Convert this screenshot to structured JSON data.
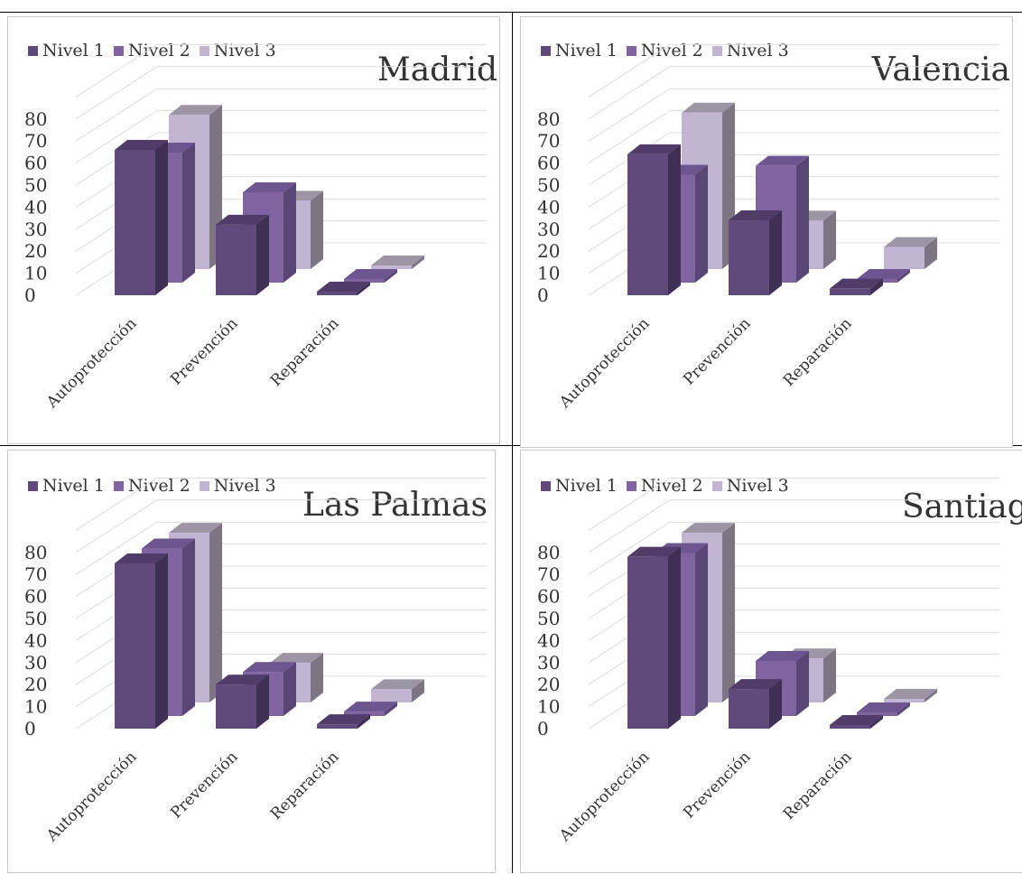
{
  "legend": [
    "Nivel 1",
    "Nivel 2",
    "Nivel 3"
  ],
  "colors": {
    "nivel1": {
      "front": "#604a7b",
      "side": "#3f2f55",
      "top": "#4f3c68"
    },
    "nivel2": {
      "front": "#8064a2",
      "side": "#5a4675",
      "top": "#6d5590"
    },
    "nivel3": {
      "front": "#c1b5d3",
      "side": "#7d7484",
      "top": "#9c95a6"
    }
  },
  "chart_data": [
    {
      "type": "bar",
      "title": "Madrid",
      "categories": [
        "Autoprotección",
        "Prevención",
        "Reparación"
      ],
      "series": [
        {
          "name": "Nivel 1",
          "values": [
            66,
            32,
            0
          ]
        },
        {
          "name": "Nivel 2",
          "values": [
            59,
            41,
            0
          ]
        },
        {
          "name": "Nivel 3",
          "values": [
            70,
            31,
            0
          ]
        }
      ],
      "yticks": [
        "0",
        "10",
        "20",
        "30",
        "40",
        "50",
        "60",
        "70",
        "80"
      ],
      "ylim": [
        0,
        80
      ]
    },
    {
      "type": "bar",
      "title": "Valencia",
      "categories": [
        "Autoprotección",
        "Prevención",
        "Reparación"
      ],
      "series": [
        {
          "name": "Nivel 1",
          "values": [
            64,
            34,
            3
          ]
        },
        {
          "name": "Nivel 2",
          "values": [
            49,
            53,
            0
          ]
        },
        {
          "name": "Nivel 3",
          "values": [
            71,
            22,
            10
          ]
        }
      ],
      "yticks": [
        "0",
        "10",
        "20",
        "30",
        "40",
        "50",
        "60",
        "70",
        "80"
      ],
      "ylim": [
        0,
        80
      ]
    },
    {
      "type": "bar",
      "title": "Las Palmas",
      "categories": [
        "Autoprotección",
        "Prevención",
        "Reparación"
      ],
      "series": [
        {
          "name": "Nivel 1",
          "values": [
            75,
            20,
            2
          ]
        },
        {
          "name": "Nivel 2",
          "values": [
            76,
            20,
            2
          ]
        },
        {
          "name": "Nivel 3",
          "values": [
            77,
            18,
            6
          ]
        }
      ],
      "yticks": [
        "0",
        "10",
        "20",
        "30",
        "40",
        "50",
        "60",
        "70",
        "80"
      ],
      "ylim": [
        0,
        80
      ]
    },
    {
      "type": "bar",
      "title": "Santiago",
      "categories": [
        "Autoprotección",
        "Prevención",
        "Reparación"
      ],
      "series": [
        {
          "name": "Nivel 1",
          "values": [
            78,
            18,
            1
          ]
        },
        {
          "name": "Nivel 2",
          "values": [
            74,
            25,
            0
          ]
        },
        {
          "name": "Nivel 3",
          "values": [
            77,
            20,
            0
          ]
        }
      ],
      "yticks": [
        "0",
        "10",
        "20",
        "30",
        "40",
        "50",
        "60",
        "70",
        "80"
      ],
      "ylim": [
        0,
        80
      ]
    }
  ]
}
